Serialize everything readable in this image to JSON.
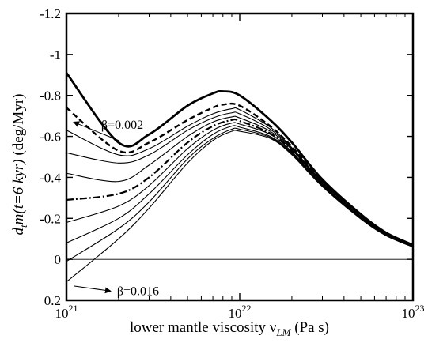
{
  "chart_data": {
    "type": "line",
    "title": "",
    "x_scale": "log",
    "xlim": [
      1e+21,
      1e+23
    ],
    "ylim": [
      -1.2,
      0.2
    ],
    "y_axis_inverted": true,
    "grid": false,
    "legend": "none",
    "x_ticks": [
      {
        "value": 1e+21,
        "base": "10",
        "exp": "21"
      },
      {
        "value": 1e+22,
        "base": "10",
        "exp": "22"
      },
      {
        "value": 1e+23,
        "base": "10",
        "exp": "23"
      }
    ],
    "y_ticks": [
      {
        "value": -1.2,
        "label": "-1.2"
      },
      {
        "value": -1.0,
        "label": "-1"
      },
      {
        "value": -0.8,
        "label": "-0.8"
      },
      {
        "value": -0.6,
        "label": "-0.6"
      },
      {
        "value": -0.4,
        "label": "-0.4"
      },
      {
        "value": -0.2,
        "label": "-0.2"
      },
      {
        "value": 0.0,
        "label": "0"
      },
      {
        "value": 0.2,
        "label": "0.2"
      }
    ],
    "xlabel": {
      "main": "lower mantle viscosity  ν",
      "sub": "LM",
      "unit": "  (Pa s)"
    },
    "ylabel": {
      "d": "d",
      "t": "t",
      "rest": "m(t=6 kyr)",
      "unit": "  (deg/Myr)"
    },
    "zero_line": 0,
    "annotations": [
      {
        "text": "β=0.002",
        "arrow_tail": [
          2e+21,
          -0.58
        ],
        "arrow_head": [
          1.1e+21,
          -0.67
        ]
      },
      {
        "text": "β=0.016",
        "arrow_tail": [
          1.1e+21,
          0.13
        ],
        "arrow_head": [
          1.8e+21,
          0.155
        ]
      }
    ],
    "series": [
      {
        "style": "bold",
        "x": [
          1e+21,
          2e+21,
          3e+21,
          5e+21,
          7e+21,
          8e+21,
          1e+22,
          1.5e+22,
          2e+22,
          3e+22,
          5e+22,
          7e+22,
          1e+23
        ],
        "y": [
          -0.91,
          -0.57,
          -0.61,
          -0.75,
          -0.81,
          -0.82,
          -0.8,
          -0.68,
          -0.57,
          -0.39,
          -0.22,
          -0.13,
          -0.07
        ]
      },
      {
        "style": "dashed",
        "x": [
          1e+21,
          2e+21,
          3e+21,
          5e+21,
          7e+21,
          8e+21,
          1e+22,
          1.5e+22,
          2e+22,
          3e+22,
          5e+22,
          7e+22,
          1e+23
        ],
        "y": [
          -0.74,
          -0.53,
          -0.57,
          -0.68,
          -0.74,
          -0.755,
          -0.75,
          -0.65,
          -0.55,
          -0.385,
          -0.215,
          -0.125,
          -0.065
        ]
      },
      {
        "style": "thin",
        "x": [
          1e+21,
          2e+21,
          3e+21,
          5e+21,
          7e+21,
          9e+21,
          1e+22,
          1.5e+22,
          2e+22,
          3e+22,
          5e+22,
          7e+22,
          1e+23
        ],
        "y": [
          -0.63,
          -0.51,
          -0.54,
          -0.65,
          -0.71,
          -0.735,
          -0.73,
          -0.645,
          -0.545,
          -0.38,
          -0.21,
          -0.123,
          -0.065
        ]
      },
      {
        "style": "thin",
        "x": [
          1e+21,
          2e+21,
          3e+21,
          5e+21,
          7e+21,
          9e+21,
          1e+22,
          1.5e+22,
          2e+22,
          3e+22,
          5e+22,
          7e+22,
          1e+23
        ],
        "y": [
          -0.52,
          -0.47,
          -0.51,
          -0.63,
          -0.69,
          -0.715,
          -0.71,
          -0.635,
          -0.54,
          -0.375,
          -0.21,
          -0.122,
          -0.064
        ]
      },
      {
        "style": "thin",
        "x": [
          1e+21,
          2e+21,
          3e+21,
          5e+21,
          7e+21,
          9e+21,
          1e+22,
          1.5e+22,
          2e+22,
          3e+22,
          5e+22,
          7e+22,
          1e+23
        ],
        "y": [
          -0.42,
          -0.38,
          -0.46,
          -0.6,
          -0.67,
          -0.695,
          -0.69,
          -0.625,
          -0.535,
          -0.37,
          -0.205,
          -0.12,
          -0.063
        ]
      },
      {
        "style": "dashdot",
        "x": [
          1e+21,
          2e+21,
          3e+21,
          5e+21,
          7e+21,
          9e+21,
          1e+22,
          1.5e+22,
          2e+22,
          3e+22,
          5e+22,
          7e+22,
          1e+23
        ],
        "y": [
          -0.29,
          -0.32,
          -0.4,
          -0.57,
          -0.65,
          -0.68,
          -0.675,
          -0.615,
          -0.53,
          -0.37,
          -0.205,
          -0.12,
          -0.063
        ]
      },
      {
        "style": "thin",
        "x": [
          1e+21,
          2e+21,
          3e+21,
          5e+21,
          7e+21,
          9e+21,
          1e+22,
          1.5e+22,
          2e+22,
          3e+22,
          5e+22,
          7e+22,
          1e+23
        ],
        "y": [
          -0.18,
          -0.26,
          -0.36,
          -0.54,
          -0.63,
          -0.665,
          -0.66,
          -0.61,
          -0.525,
          -0.365,
          -0.2,
          -0.118,
          -0.062
        ]
      },
      {
        "style": "thin",
        "x": [
          1e+21,
          2e+21,
          3e+21,
          5e+21,
          7e+21,
          9e+21,
          1e+22,
          1.5e+22,
          2e+22,
          3e+22,
          5e+22,
          7e+22,
          1e+23
        ],
        "y": [
          -0.08,
          -0.2,
          -0.32,
          -0.51,
          -0.61,
          -0.65,
          -0.645,
          -0.6,
          -0.52,
          -0.36,
          -0.2,
          -0.117,
          -0.061
        ]
      },
      {
        "style": "thin",
        "x": [
          1e+21,
          2e+21,
          3e+21,
          5e+21,
          7e+21,
          9e+21,
          1e+22,
          1.5e+22,
          2e+22,
          3e+22,
          5e+22,
          7e+22,
          1e+23
        ],
        "y": [
          0.01,
          -0.15,
          -0.28,
          -0.49,
          -0.59,
          -0.635,
          -0.635,
          -0.595,
          -0.515,
          -0.36,
          -0.198,
          -0.116,
          -0.06
        ]
      },
      {
        "style": "thin",
        "x": [
          1e+21,
          2e+21,
          3e+21,
          5e+21,
          7e+21,
          9e+21,
          1e+22,
          1.5e+22,
          2e+22,
          3e+22,
          5e+22,
          7e+22,
          1e+23
        ],
        "y": [
          0.11,
          -0.1,
          -0.25,
          -0.47,
          -0.58,
          -0.625,
          -0.625,
          -0.59,
          -0.51,
          -0.355,
          -0.197,
          -0.115,
          -0.06
        ]
      }
    ]
  }
}
